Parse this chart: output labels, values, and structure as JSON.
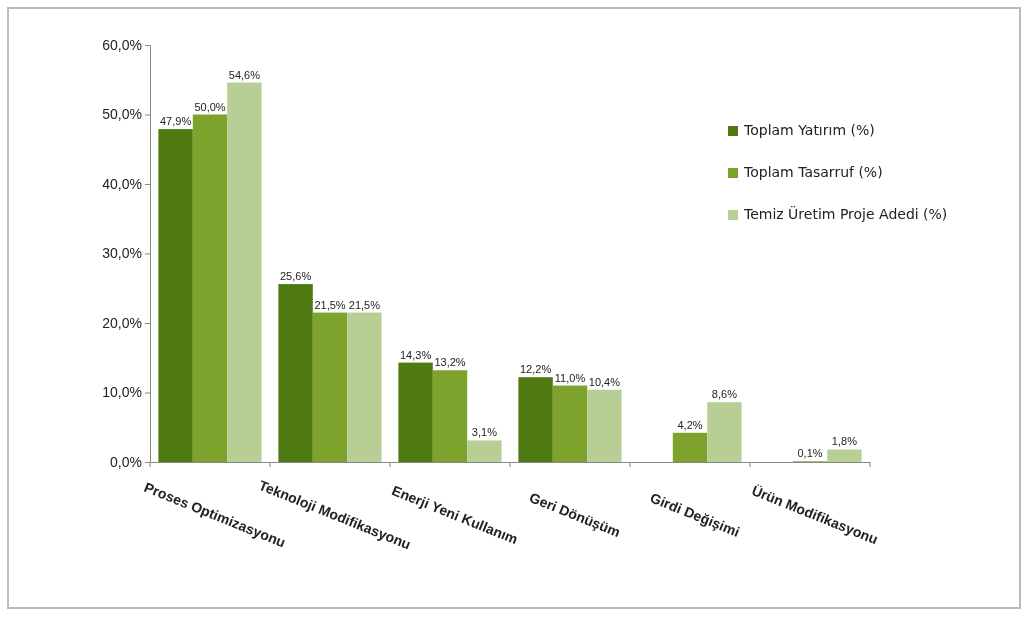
{
  "chart_data": {
    "type": "bar",
    "categories": [
      "Proses Optimizasyonu",
      "Teknoloji Modifikasyonu",
      "Enerji Yeni Kullanım",
      "Geri Dönüşüm",
      "Girdi Değişimi",
      "Ürün Modifikasyonu"
    ],
    "series": [
      {
        "name": "Toplam Yatırım (%)",
        "color": "#4f7a12",
        "values": [
          47.9,
          25.6,
          14.3,
          12.2,
          null,
          null
        ],
        "value_labels": [
          "47,9%",
          "25,6%",
          "14,3%",
          "12,2%",
          null,
          null
        ]
      },
      {
        "name": "Toplam Tasarruf (%)",
        "color": "#7ea32d",
        "values": [
          50.0,
          21.5,
          13.2,
          11.0,
          4.2,
          0.1
        ],
        "value_labels": [
          "50,0%",
          "21,5%",
          "13,2%",
          "11,0%",
          "4,2%",
          "0,1%"
        ]
      },
      {
        "name": "Temiz Üretim Proje Adedi (%)",
        "color": "#b7cf95",
        "values": [
          54.6,
          21.5,
          3.1,
          10.4,
          8.6,
          1.8
        ],
        "value_labels": [
          "54,6%",
          "21,5%",
          "3,1%",
          "10,4%",
          "8,6%",
          "1,8%"
        ]
      }
    ],
    "ylim": [
      0,
      60
    ],
    "yticks": [
      {
        "value": 0,
        "label": "0,0%"
      },
      {
        "value": 10,
        "label": "10,0%"
      },
      {
        "value": 20,
        "label": "20,0%"
      },
      {
        "value": 30,
        "label": "30,0%"
      },
      {
        "value": 40,
        "label": "40,0%"
      },
      {
        "value": 50,
        "label": "50,0%"
      },
      {
        "value": 60,
        "label": "60,0%"
      }
    ],
    "legend": "top right",
    "grid": false
  }
}
